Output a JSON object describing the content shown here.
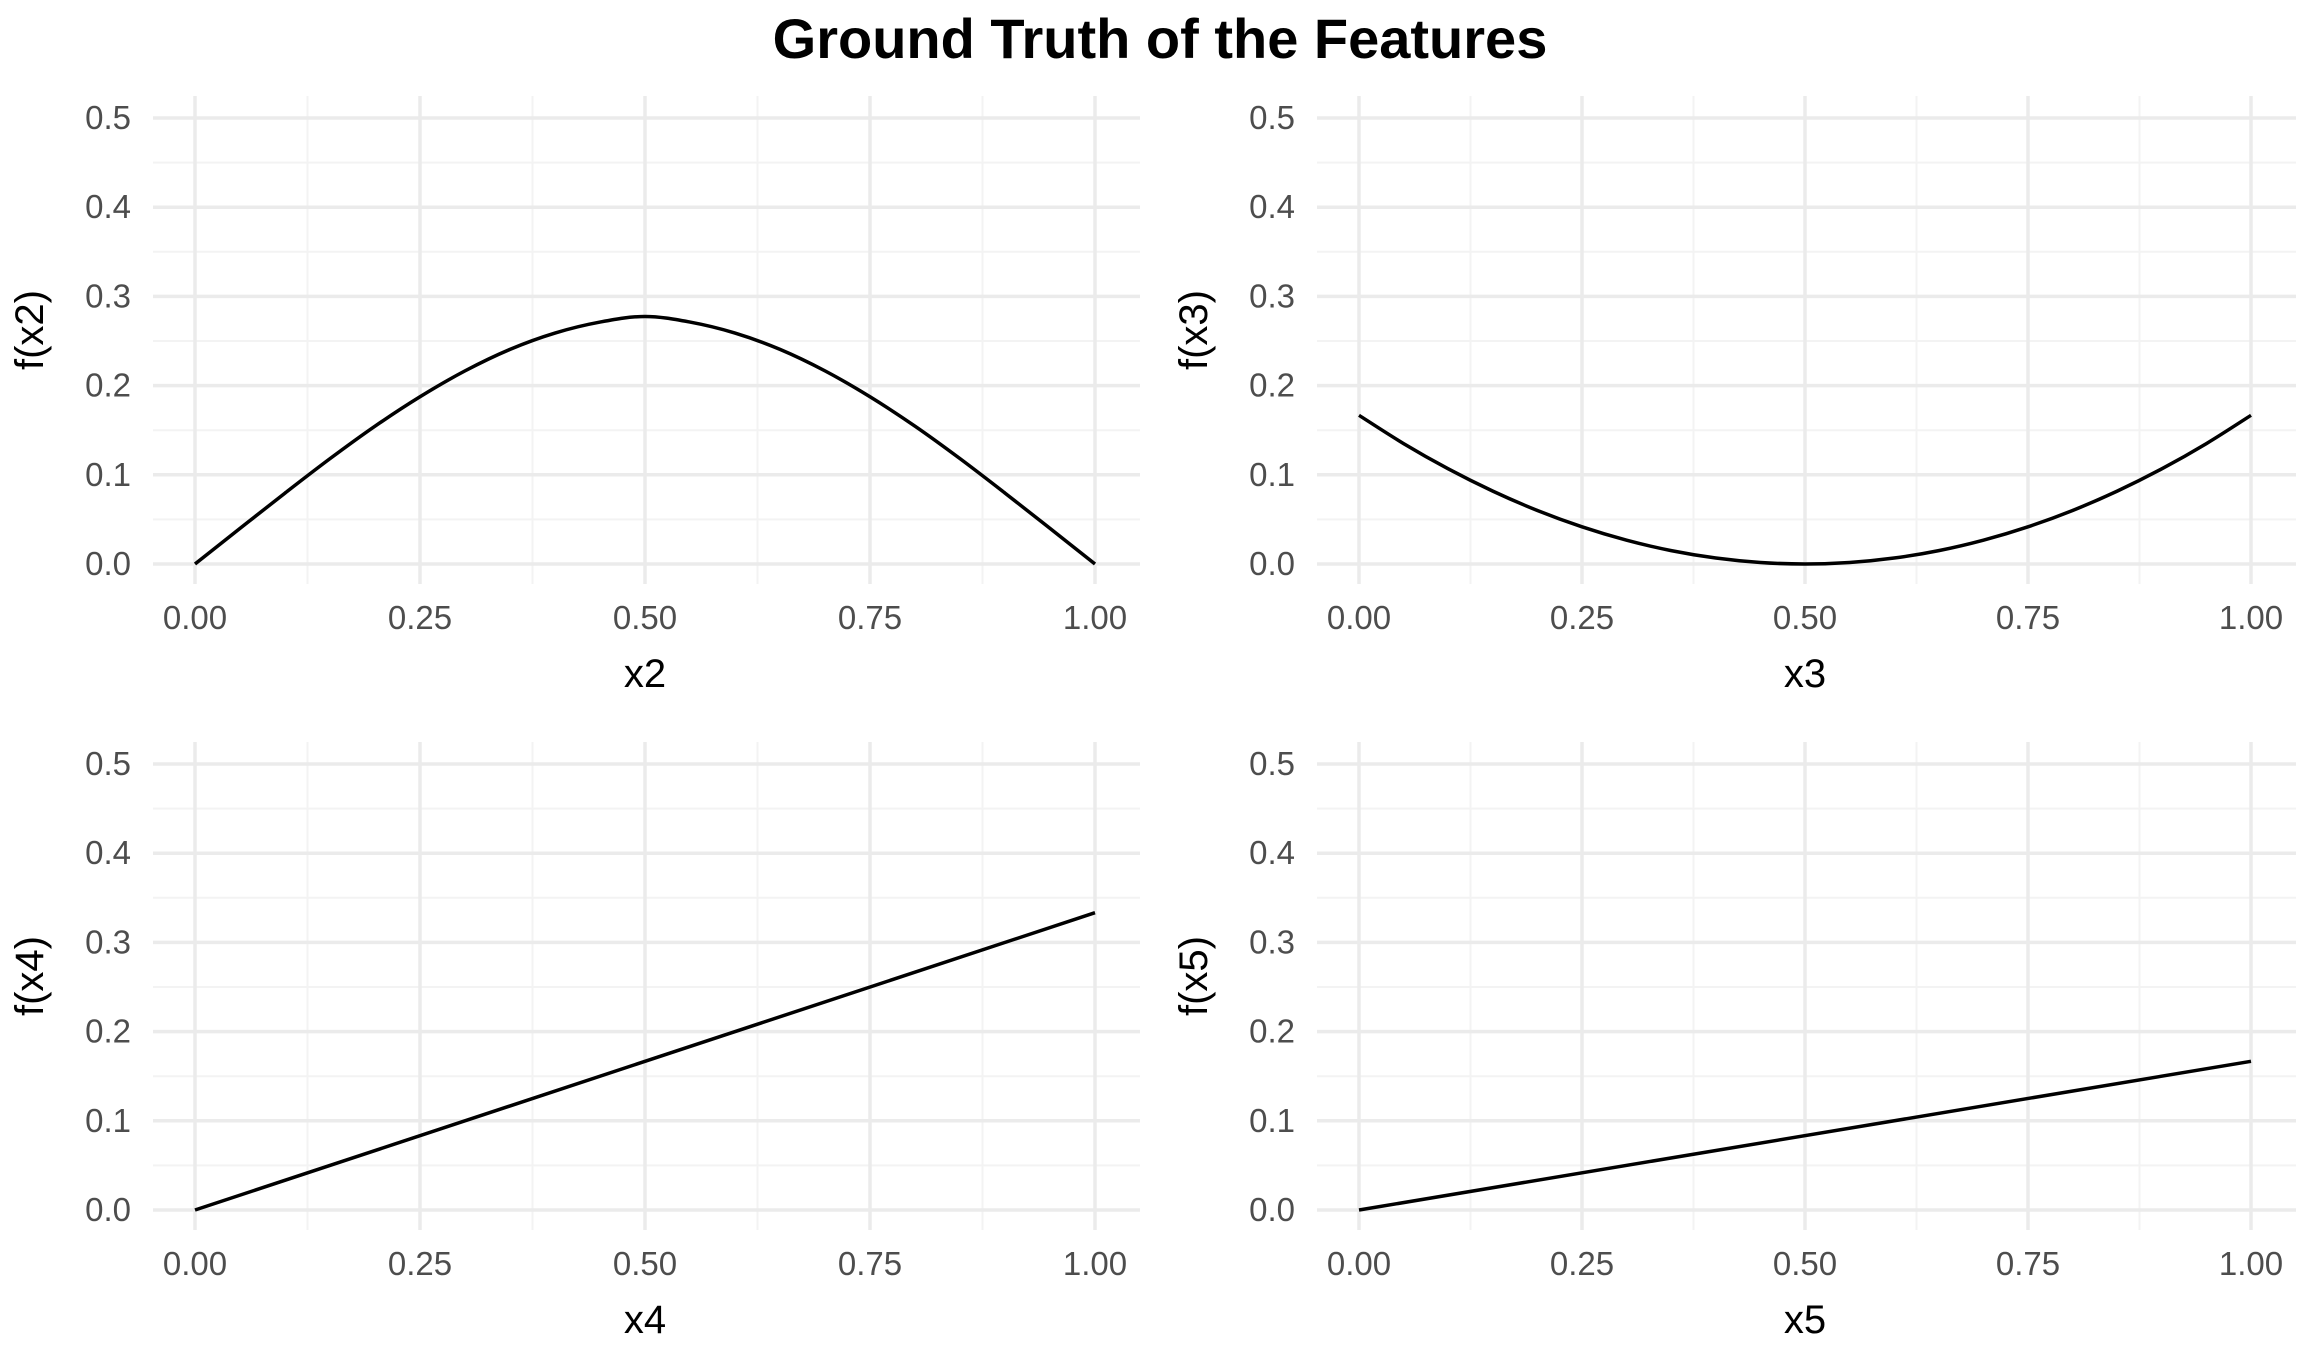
{
  "title": "Ground Truth of the Features",
  "colors": {
    "grid_major": "#ebebeb",
    "grid_minor": "#f3f3f3",
    "line": "#000000",
    "tick_text": "#4d4d4d"
  },
  "chart_data": [
    {
      "type": "line",
      "xlabel": "x2",
      "ylabel": "f(x2)",
      "xlim": [
        0,
        1
      ],
      "ylim": [
        0,
        0.5
      ],
      "grid": true,
      "x_ticks": [
        "0.00",
        "0.25",
        "0.50",
        "0.75",
        "1.00"
      ],
      "y_ticks": [
        "0.0",
        "0.1",
        "0.2",
        "0.3",
        "0.4",
        "0.5"
      ],
      "series": [
        {
          "x": [
            0,
            0.05,
            0.1,
            0.15,
            0.2,
            0.25,
            0.3,
            0.35,
            0.4,
            0.45,
            0.5,
            0.55,
            0.6,
            0.65,
            0.7,
            0.75,
            0.8,
            0.85,
            0.9,
            0.95,
            1.0
          ],
          "y": [
            0,
            0.0399,
            0.0795,
            0.1181,
            0.1545,
            0.1875,
            0.2165,
            0.2406,
            0.2589,
            0.2712,
            0.2775,
            0.2712,
            0.2589,
            0.2406,
            0.2165,
            0.1875,
            0.1545,
            0.1181,
            0.0795,
            0.0399,
            0
          ]
        }
      ]
    },
    {
      "type": "line",
      "xlabel": "x3",
      "ylabel": "f(x3)",
      "xlim": [
        0,
        1
      ],
      "ylim": [
        0,
        0.5
      ],
      "grid": true,
      "x_ticks": [
        "0.00",
        "0.25",
        "0.50",
        "0.75",
        "1.00"
      ],
      "y_ticks": [
        "0.0",
        "0.1",
        "0.2",
        "0.3",
        "0.4",
        "0.5"
      ],
      "series": [
        {
          "x": [
            0,
            0.05,
            0.1,
            0.15,
            0.2,
            0.25,
            0.3,
            0.35,
            0.4,
            0.45,
            0.5,
            0.55,
            0.6,
            0.65,
            0.7,
            0.75,
            0.8,
            0.85,
            0.9,
            0.95,
            1.0
          ],
          "y": [
            0.1667,
            0.135,
            0.1067,
            0.0817,
            0.06,
            0.0417,
            0.0267,
            0.015,
            0.0067,
            0.0017,
            0,
            0.0017,
            0.0067,
            0.015,
            0.0267,
            0.0417,
            0.06,
            0.0817,
            0.1067,
            0.135,
            0.1667
          ]
        }
      ]
    },
    {
      "type": "line",
      "xlabel": "x4",
      "ylabel": "f(x4)",
      "xlim": [
        0,
        1
      ],
      "ylim": [
        0,
        0.5
      ],
      "grid": true,
      "x_ticks": [
        "0.00",
        "0.25",
        "0.50",
        "0.75",
        "1.00"
      ],
      "y_ticks": [
        "0.0",
        "0.1",
        "0.2",
        "0.3",
        "0.4",
        "0.5"
      ],
      "series": [
        {
          "x": [
            0,
            1.0
          ],
          "y": [
            0,
            0.3333
          ]
        }
      ]
    },
    {
      "type": "line",
      "xlabel": "x5",
      "ylabel": "f(x5)",
      "xlim": [
        0,
        1
      ],
      "ylim": [
        0,
        0.5
      ],
      "grid": true,
      "x_ticks": [
        "0.00",
        "0.25",
        "0.50",
        "0.75",
        "1.00"
      ],
      "y_ticks": [
        "0.0",
        "0.1",
        "0.2",
        "0.3",
        "0.4",
        "0.5"
      ],
      "series": [
        {
          "x": [
            0,
            1.0
          ],
          "y": [
            0,
            0.1667
          ]
        }
      ]
    }
  ]
}
